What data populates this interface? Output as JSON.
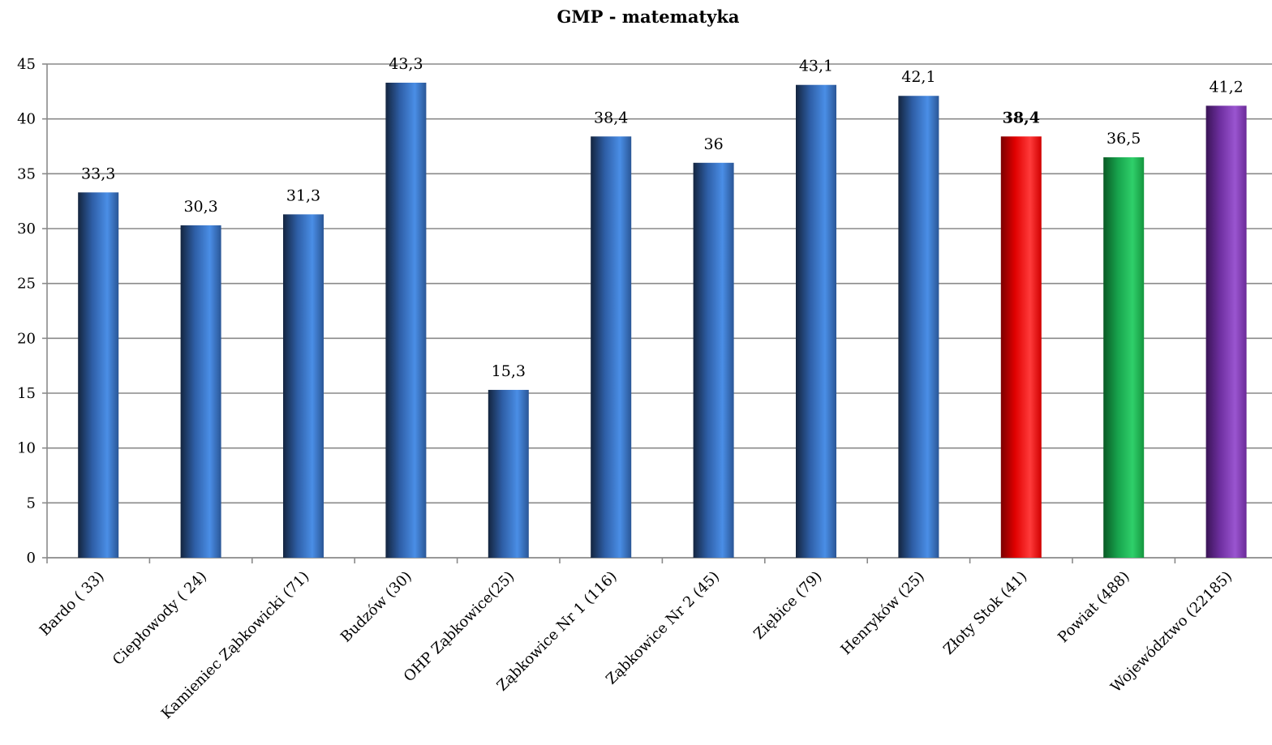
{
  "chart_data": {
    "type": "bar",
    "title": "GMP - matematyka",
    "xlabel": "",
    "ylabel": "",
    "ylim": [
      0,
      45
    ],
    "yticks": [
      0,
      5,
      10,
      15,
      20,
      25,
      30,
      35,
      40,
      45
    ],
    "grid": true,
    "legend": "none",
    "categories": [
      "Bardo ( 33)",
      "Ciepłowody ( 24)",
      "Kamieniec Ząbkowicki (71)",
      "Budzów (30)",
      "OHP Ząbkowice(25)",
      "Ząbkowice Nr 1 (116)",
      "Ząbkowice Nr 2 (45)",
      "Ziębice (79)",
      "Henryków (25)",
      "Złoty Stok (41)",
      "Powiat (488)",
      "Województwo (22185)"
    ],
    "values": [
      33.3,
      30.3,
      31.3,
      43.3,
      15.3,
      38.4,
      36,
      43.1,
      42.1,
      38.4,
      36.5,
      41.2
    ],
    "value_labels": [
      "33,3",
      "30,3",
      "31,3",
      "43,3",
      "15,3",
      "38,4",
      "36",
      "43,1",
      "42,1",
      "38,4",
      "36,5",
      "41,2"
    ],
    "bar_colors": [
      "blue",
      "blue",
      "blue",
      "blue",
      "blue",
      "blue",
      "blue",
      "blue",
      "blue",
      "red",
      "green",
      "purple"
    ],
    "highlight_label_index": 9,
    "colors": {
      "blue": "#3a78d0",
      "red": "#ff1a1a",
      "green": "#1fb85a",
      "purple": "#7a3aaa"
    }
  }
}
